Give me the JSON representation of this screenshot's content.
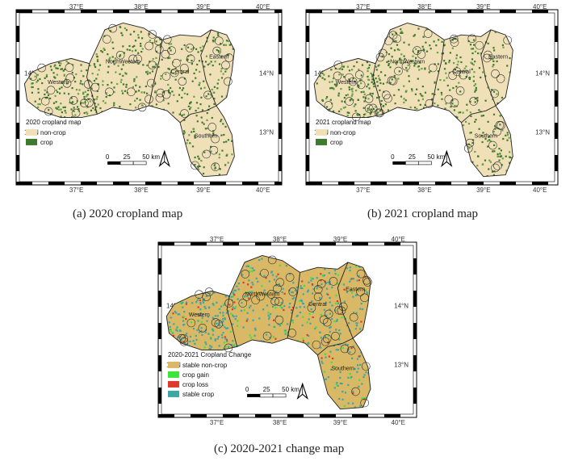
{
  "panels": [
    {
      "caption": "(a) 2020 cropland map",
      "legend_title": "2020 cropland map",
      "legend": [
        {
          "label": "non-crop",
          "color": "#f0e0b8"
        },
        {
          "label": "crop",
          "color": "#3e7a2e"
        }
      ],
      "base_color": "#f0e0b8",
      "speckle": [
        {
          "color": "#3e7a2e",
          "density": 0.55
        },
        {
          "color": "#6aa04a",
          "density": 0.25
        }
      ]
    },
    {
      "caption": "(b) 2021 cropland map",
      "legend_title": "2021 cropland map",
      "legend": [
        {
          "label": "non-crop",
          "color": "#f0e0b8"
        },
        {
          "label": "crop",
          "color": "#3e7a2e"
        }
      ],
      "base_color": "#f0e0b8",
      "speckle": [
        {
          "color": "#3e7a2e",
          "density": 0.55
        },
        {
          "color": "#6aa04a",
          "density": 0.25
        }
      ]
    },
    {
      "caption": "(c) 2020-2021 change map",
      "legend_title": "2020-2021 Cropland Change",
      "legend": [
        {
          "label": "stable non-crop",
          "color": "#d9b866"
        },
        {
          "label": "crop gain",
          "color": "#39e639"
        },
        {
          "label": "crop loss",
          "color": "#e03a2a"
        },
        {
          "label": "stable crop",
          "color": "#3ea6a6"
        }
      ],
      "base_color": "#d9b866",
      "speckle": [
        {
          "color": "#3ea6a6",
          "density": 0.6
        },
        {
          "color": "#39e639",
          "density": 0.15
        },
        {
          "color": "#e03a2a",
          "density": 0.1
        }
      ]
    }
  ],
  "top_ticks": [
    "37°E",
    "38°E",
    "39°E",
    "40°E"
  ],
  "bottom_ticks": [
    "37°E",
    "38°E",
    "39°E",
    "40°E"
  ],
  "lat_ticks": [
    "14°N",
    "13°N"
  ],
  "regions": [
    "Western",
    "NorthWestern",
    "Central",
    "Eastern",
    "Southern"
  ],
  "scalebar": {
    "labels": [
      "0",
      "25",
      "50 km"
    ]
  },
  "north_arrow": "north-arrow-icon"
}
